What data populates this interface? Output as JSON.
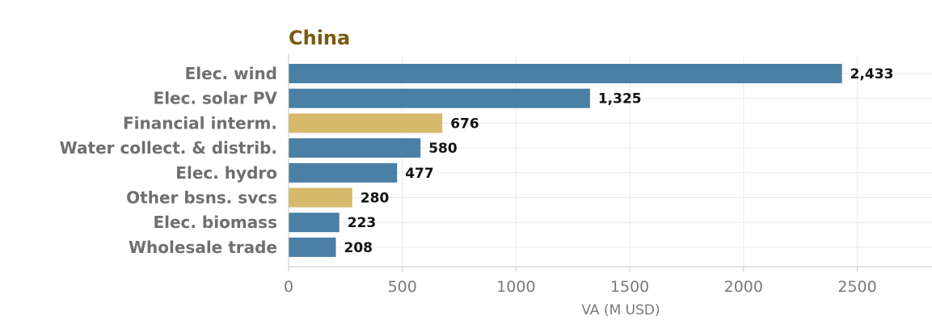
{
  "chart_data": {
    "type": "bar",
    "orientation": "horizontal",
    "title": "China",
    "xlabel": "VA (M USD)",
    "ylabel": "",
    "xlim": [
      0,
      2850
    ],
    "xticks": [
      0,
      500,
      1000,
      1500,
      2000,
      2500
    ],
    "grid": true,
    "categories": [
      "Elec. wind",
      "Elec. solar PV",
      "Financial interm.",
      "Water collect. & distrib.",
      "Elec. hydro",
      "Other bsns. svcs",
      "Elec. biomass",
      "Wholesale trade"
    ],
    "values": [
      2433,
      1325,
      676,
      580,
      477,
      280,
      223,
      208
    ],
    "value_labels": [
      "2,433",
      "1,325",
      "676",
      "580",
      "477",
      "280",
      "223",
      "208"
    ],
    "bar_colors": [
      "#4a7fa6",
      "#4a7fa6",
      "#d6b96a",
      "#4a7fa6",
      "#4a7fa6",
      "#d6b96a",
      "#4a7fa6",
      "#4a7fa6"
    ]
  }
}
